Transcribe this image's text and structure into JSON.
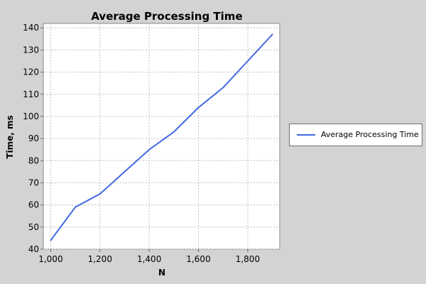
{
  "chart_data": {
    "type": "line",
    "title": "Average Processing Time",
    "xlabel": "N",
    "ylabel": "Time, ms",
    "xlim": [
      970,
      1930
    ],
    "ylim": [
      40,
      142
    ],
    "x_ticks": [
      1000,
      1200,
      1400,
      1600,
      1800
    ],
    "x_tick_labels": [
      "1,000",
      "1,200",
      "1,400",
      "1,600",
      "1,800"
    ],
    "y_ticks": [
      40,
      50,
      60,
      70,
      80,
      90,
      100,
      110,
      120,
      130,
      140
    ],
    "y_tick_labels": [
      "40",
      "50",
      "60",
      "70",
      "80",
      "90",
      "100",
      "110",
      "120",
      "130",
      "140"
    ],
    "grid": true,
    "legend_position": "right",
    "series": [
      {
        "name": "Average Processing Time",
        "color": "#4169e1",
        "x": [
          1000,
          1100,
          1200,
          1300,
          1400,
          1500,
          1600,
          1700,
          1800,
          1900
        ],
        "y": [
          44,
          59,
          65,
          75,
          85,
          93,
          104,
          113,
          125,
          137
        ]
      }
    ]
  }
}
